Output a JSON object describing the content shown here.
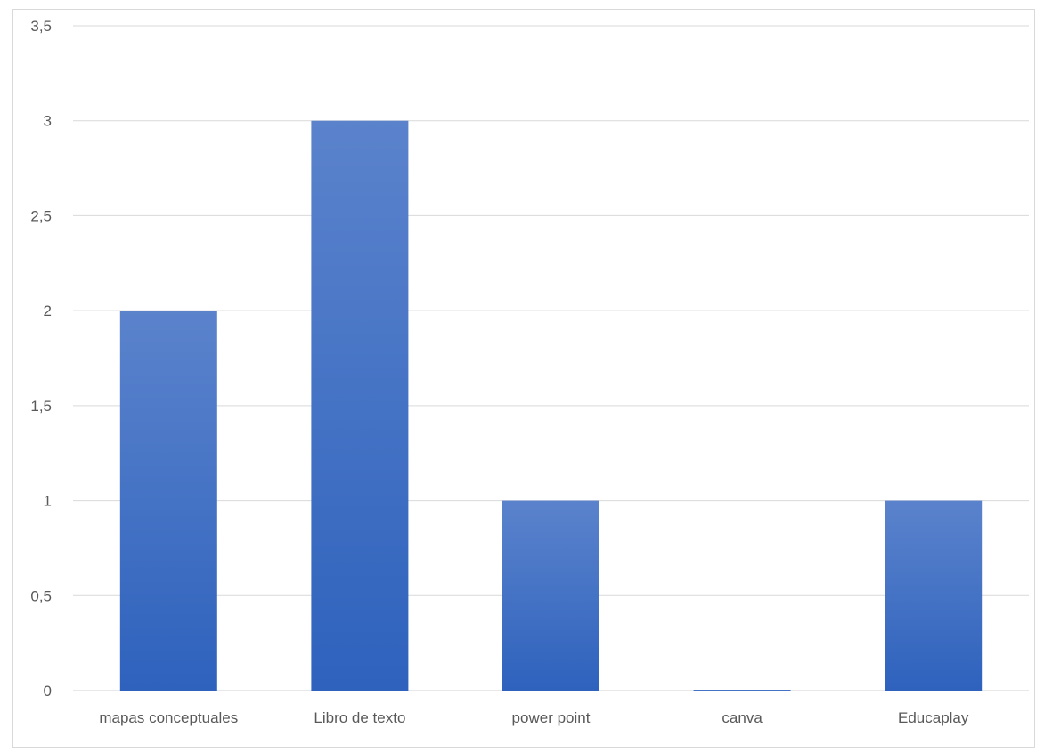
{
  "chart_data": {
    "type": "bar",
    "categories": [
      "mapas conceptuales",
      "Libro de texto",
      "power point",
      "canva",
      "Educaplay"
    ],
    "values": [
      2,
      3,
      1,
      0,
      1
    ],
    "ylim": [
      0,
      3.5
    ],
    "y_ticks": [
      0,
      0.5,
      1,
      1.5,
      2,
      2.5,
      3,
      3.5
    ],
    "y_tick_labels": [
      "0",
      "0,5",
      "1",
      "1,5",
      "2",
      "2,5",
      "3",
      "3,5"
    ],
    "title": "",
    "xlabel": "",
    "ylabel": "",
    "grid": true,
    "legend": "none",
    "bar_color_top": "#5b83cc",
    "bar_color_bottom": "#2e62bd"
  }
}
